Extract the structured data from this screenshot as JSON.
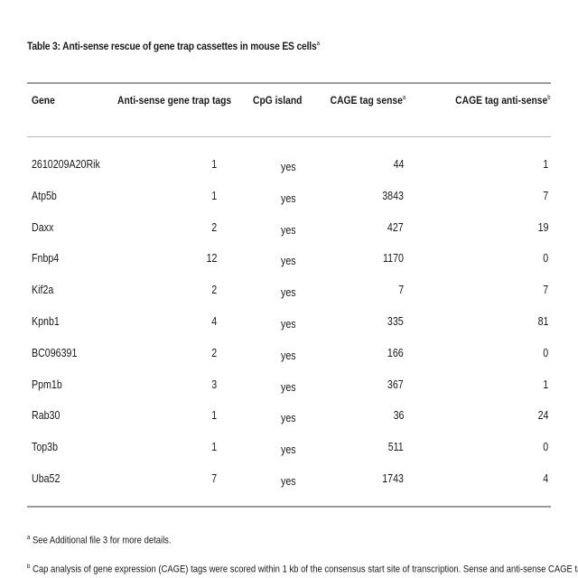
{
  "table": {
    "caption": "Table 3: Anti-sense rescue of gene trap cassettes in mouse ES cells",
    "caption_note_mark": "a",
    "headers": {
      "gene": "Gene",
      "tags": "Anti-sense gene trap tags",
      "cpg": "CpG island",
      "cage_sense": "CAGE tag sense",
      "cage_sense_mark": "a",
      "cage_anti": "CAGE tag anti-sense",
      "cage_anti_mark": "b"
    },
    "rows": [
      {
        "gene": "2610209A20Rik",
        "tags": "1",
        "cpg": "yes",
        "sense": "44",
        "anti": "1"
      },
      {
        "gene": "Atp5b",
        "tags": "1",
        "cpg": "yes",
        "sense": "3843",
        "anti": "7"
      },
      {
        "gene": "Daxx",
        "tags": "2",
        "cpg": "yes",
        "sense": "427",
        "anti": "19"
      },
      {
        "gene": "Fnbp4",
        "tags": "12",
        "cpg": "yes",
        "sense": "1170",
        "anti": "0"
      },
      {
        "gene": "Kif2a",
        "tags": "2",
        "cpg": "yes",
        "sense": "7",
        "anti": "7"
      },
      {
        "gene": "Kpnb1",
        "tags": "4",
        "cpg": "yes",
        "sense": "335",
        "anti": "81"
      },
      {
        "gene": "BC096391",
        "tags": "2",
        "cpg": "yes",
        "sense": "166",
        "anti": "0"
      },
      {
        "gene": "Ppm1b",
        "tags": "3",
        "cpg": "yes",
        "sense": "367",
        "anti": "1"
      },
      {
        "gene": "Rab30",
        "tags": "1",
        "cpg": "yes",
        "sense": "36",
        "anti": "24"
      },
      {
        "gene": "Top3b",
        "tags": "1",
        "cpg": "yes",
        "sense": "511",
        "anti": "0"
      },
      {
        "gene": "Uba52",
        "tags": "7",
        "cpg": "yes",
        "sense": "1743",
        "anti": "4"
      }
    ],
    "footnotes": {
      "a_mark": "a",
      "a_text": "See Additional file 3 for more details.",
      "b_mark": "b",
      "b_text": "Cap analysis of gene expression (CAGE) tags were scored within 1 kb of the consensus start site of transcription. Sense and anti-sense CAGE tags"
    }
  }
}
